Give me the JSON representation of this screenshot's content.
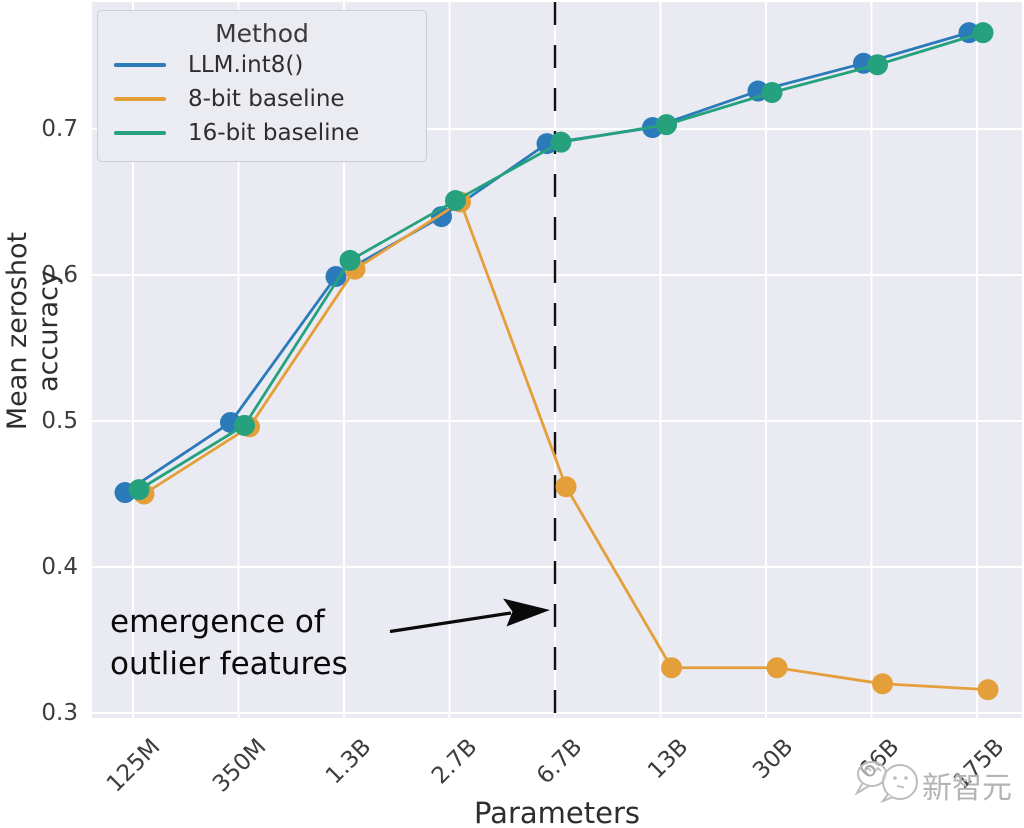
{
  "chart_data": {
    "type": "line",
    "title": "",
    "xlabel": "Parameters",
    "ylabel": "Mean zeroshot accuracy",
    "categories": [
      "125M",
      "350M",
      "1.3B",
      "2.7B",
      "6.7B",
      "13B",
      "30B",
      "66B",
      "175B"
    ],
    "yticks": [
      0.7,
      0.6,
      0.5,
      0.4,
      0.3
    ],
    "ylim": [
      0.295,
      0.79
    ],
    "grid": true,
    "legend": {
      "title": "Method",
      "position": "upper left"
    },
    "series": [
      {
        "name": "LLM.int8()",
        "color": "#2b7bba",
        "values": [
          0.451,
          0.499,
          0.599,
          0.64,
          0.69,
          0.701,
          0.726,
          0.745,
          0.766
        ]
      },
      {
        "name": "8-bit baseline",
        "color": "#e49f3a",
        "values": [
          0.45,
          0.496,
          0.604,
          0.65,
          0.455,
          0.331,
          0.331,
          0.32,
          0.316
        ]
      },
      {
        "name": "16-bit baseline",
        "color": "#26a17e",
        "values": [
          0.453,
          0.497,
          0.61,
          0.651,
          0.691,
          0.703,
          0.725,
          0.744,
          0.766
        ]
      }
    ],
    "annotation": {
      "line1": "emergence of",
      "line2": "outlier features",
      "target_category": "6.7B",
      "vline_style": "dashed",
      "vline_color": "#111111"
    },
    "colors": {
      "plot_background": "#eaeaf2",
      "gridline": "#ffffff"
    }
  },
  "watermark": {
    "text": "新智元"
  }
}
